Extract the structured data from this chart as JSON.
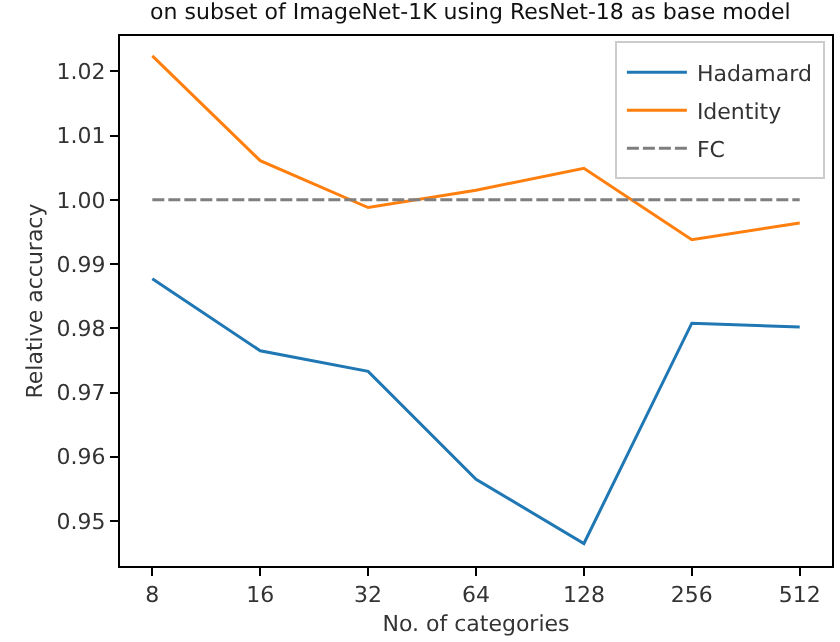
{
  "chart_data": {
    "type": "line",
    "title": "on subset of ImageNet-1K using ResNet-18 as base model",
    "xlabel": "No. of categories",
    "ylabel": "Relative accuracy",
    "x": [
      8,
      16,
      32,
      64,
      128,
      256,
      512
    ],
    "log": "x",
    "xlim": [
      6.5,
      630
    ],
    "xticks": [
      8,
      16,
      32,
      64,
      128,
      256,
      512
    ],
    "ylim": [
      0.943,
      1.0255
    ],
    "yticks": [
      0.95,
      0.96,
      0.97,
      0.98,
      0.99,
      {
        "value": 1.0,
        "label": "1.00"
      },
      1.01,
      1.02
    ],
    "series": [
      {
        "name": "Hadamard",
        "color": "#1f77b4",
        "values": [
          0.9877,
          0.9765,
          0.9733,
          0.9565,
          0.9465,
          0.9808,
          0.9802
        ]
      },
      {
        "name": "Identity",
        "color": "#ff7f0e",
        "values": [
          1.0224,
          1.0061,
          0.9988,
          1.0015,
          1.0049,
          0.9938,
          0.9964
        ]
      },
      {
        "name": "FC",
        "color": "#7f7f7f",
        "line_style": "dashed",
        "values": [
          1.0,
          1.0,
          1.0,
          1.0,
          1.0,
          1.0,
          1.0
        ]
      }
    ],
    "legend": "top right",
    "marker": "none"
  }
}
